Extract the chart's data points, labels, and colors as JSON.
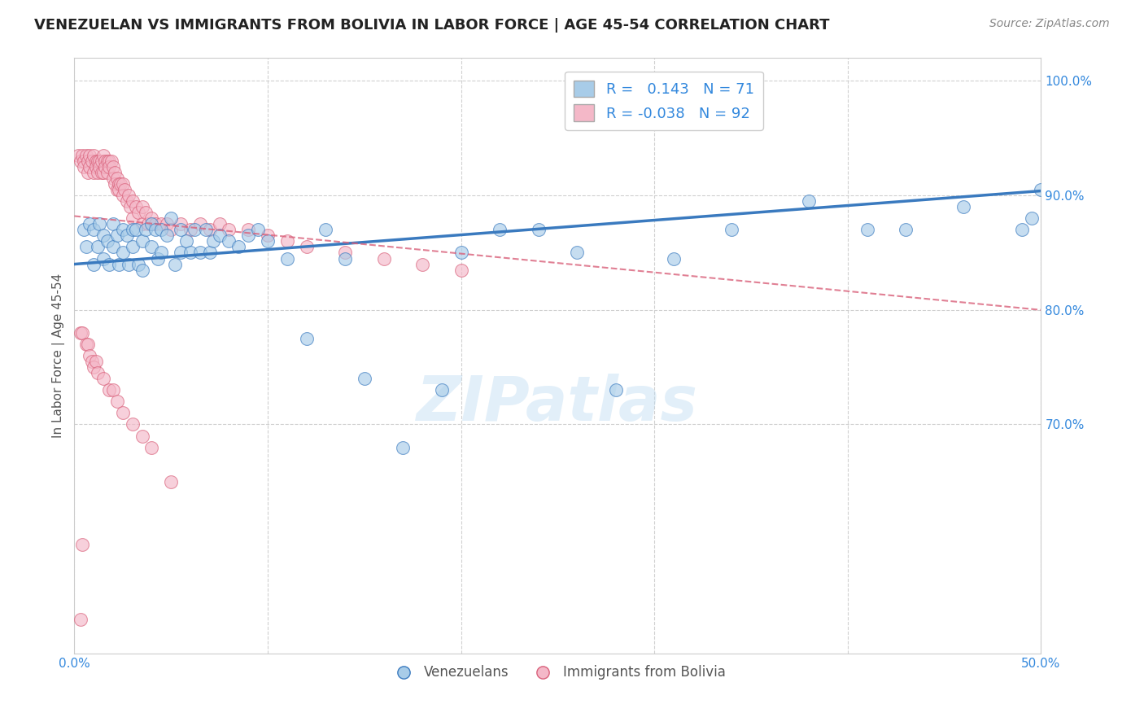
{
  "title": "VENEZUELAN VS IMMIGRANTS FROM BOLIVIA IN LABOR FORCE | AGE 45-54 CORRELATION CHART",
  "source": "Source: ZipAtlas.com",
  "ylabel": "In Labor Force | Age 45-54",
  "xlim": [
    0.0,
    0.5
  ],
  "ylim": [
    0.5,
    1.02
  ],
  "xticks": [
    0.0,
    0.1,
    0.2,
    0.3,
    0.4,
    0.5
  ],
  "xticklabels": [
    "0.0%",
    "",
    "",
    "",
    "",
    "50.0%"
  ],
  "ytick_right": [
    0.7,
    0.8,
    0.9,
    1.0
  ],
  "ytick_right_labels": [
    "70.0%",
    "80.0%",
    "90.0%",
    "100.0%"
  ],
  "blue_color": "#a8cce8",
  "blue_color_dark": "#3a7abf",
  "pink_color": "#f4b8c8",
  "pink_color_dark": "#d9607a",
  "blue_R": 0.143,
  "blue_N": 71,
  "pink_R": -0.038,
  "pink_N": 92,
  "watermark": "ZIPatlas",
  "legend_label_blue": "Venezuelans",
  "legend_label_pink": "Immigrants from Bolivia",
  "blue_line_x": [
    0.0,
    0.5
  ],
  "blue_line_y": [
    0.84,
    0.904
  ],
  "pink_line_x": [
    0.0,
    0.5
  ],
  "pink_line_y": [
    0.882,
    0.8
  ],
  "blue_scatter_x": [
    0.005,
    0.006,
    0.008,
    0.01,
    0.01,
    0.012,
    0.013,
    0.015,
    0.015,
    0.017,
    0.018,
    0.02,
    0.02,
    0.022,
    0.023,
    0.025,
    0.025,
    0.027,
    0.028,
    0.03,
    0.03,
    0.032,
    0.033,
    0.035,
    0.035,
    0.037,
    0.04,
    0.04,
    0.042,
    0.043,
    0.045,
    0.045,
    0.048,
    0.05,
    0.052,
    0.055,
    0.055,
    0.058,
    0.06,
    0.062,
    0.065,
    0.068,
    0.07,
    0.072,
    0.075,
    0.08,
    0.085,
    0.09,
    0.095,
    0.1,
    0.11,
    0.12,
    0.13,
    0.14,
    0.15,
    0.17,
    0.19,
    0.2,
    0.22,
    0.24,
    0.26,
    0.28,
    0.31,
    0.34,
    0.38,
    0.41,
    0.43,
    0.46,
    0.49,
    0.5,
    0.495
  ],
  "blue_scatter_y": [
    0.87,
    0.855,
    0.875,
    0.87,
    0.84,
    0.855,
    0.875,
    0.865,
    0.845,
    0.86,
    0.84,
    0.875,
    0.855,
    0.865,
    0.84,
    0.87,
    0.85,
    0.865,
    0.84,
    0.87,
    0.855,
    0.87,
    0.84,
    0.86,
    0.835,
    0.87,
    0.875,
    0.855,
    0.87,
    0.845,
    0.87,
    0.85,
    0.865,
    0.88,
    0.84,
    0.87,
    0.85,
    0.86,
    0.85,
    0.87,
    0.85,
    0.87,
    0.85,
    0.86,
    0.865,
    0.86,
    0.855,
    0.865,
    0.87,
    0.86,
    0.845,
    0.775,
    0.87,
    0.845,
    0.74,
    0.68,
    0.73,
    0.85,
    0.87,
    0.87,
    0.85,
    0.73,
    0.845,
    0.87,
    0.895,
    0.87,
    0.87,
    0.89,
    0.87,
    0.905,
    0.88
  ],
  "pink_scatter_x": [
    0.002,
    0.003,
    0.004,
    0.005,
    0.005,
    0.006,
    0.007,
    0.007,
    0.008,
    0.008,
    0.009,
    0.01,
    0.01,
    0.011,
    0.011,
    0.012,
    0.012,
    0.013,
    0.013,
    0.014,
    0.014,
    0.015,
    0.015,
    0.016,
    0.016,
    0.017,
    0.017,
    0.018,
    0.018,
    0.019,
    0.02,
    0.02,
    0.021,
    0.021,
    0.022,
    0.022,
    0.023,
    0.023,
    0.024,
    0.025,
    0.025,
    0.026,
    0.027,
    0.028,
    0.029,
    0.03,
    0.03,
    0.032,
    0.033,
    0.035,
    0.035,
    0.037,
    0.038,
    0.04,
    0.042,
    0.045,
    0.048,
    0.05,
    0.055,
    0.06,
    0.065,
    0.07,
    0.075,
    0.08,
    0.09,
    0.1,
    0.11,
    0.12,
    0.14,
    0.16,
    0.18,
    0.2,
    0.003,
    0.004,
    0.006,
    0.007,
    0.008,
    0.009,
    0.01,
    0.011,
    0.012,
    0.015,
    0.018,
    0.02,
    0.022,
    0.025,
    0.03,
    0.035,
    0.04,
    0.05,
    0.004,
    0.003
  ],
  "pink_scatter_y": [
    0.935,
    0.93,
    0.935,
    0.93,
    0.925,
    0.935,
    0.93,
    0.92,
    0.935,
    0.925,
    0.93,
    0.935,
    0.92,
    0.93,
    0.925,
    0.93,
    0.92,
    0.93,
    0.925,
    0.93,
    0.92,
    0.935,
    0.92,
    0.93,
    0.925,
    0.93,
    0.92,
    0.93,
    0.925,
    0.93,
    0.925,
    0.915,
    0.92,
    0.91,
    0.915,
    0.905,
    0.91,
    0.905,
    0.91,
    0.91,
    0.9,
    0.905,
    0.895,
    0.9,
    0.89,
    0.895,
    0.88,
    0.89,
    0.885,
    0.89,
    0.875,
    0.885,
    0.875,
    0.88,
    0.875,
    0.875,
    0.875,
    0.87,
    0.875,
    0.87,
    0.875,
    0.87,
    0.875,
    0.87,
    0.87,
    0.865,
    0.86,
    0.855,
    0.85,
    0.845,
    0.84,
    0.835,
    0.78,
    0.78,
    0.77,
    0.77,
    0.76,
    0.755,
    0.75,
    0.755,
    0.745,
    0.74,
    0.73,
    0.73,
    0.72,
    0.71,
    0.7,
    0.69,
    0.68,
    0.65,
    0.595,
    0.53
  ]
}
